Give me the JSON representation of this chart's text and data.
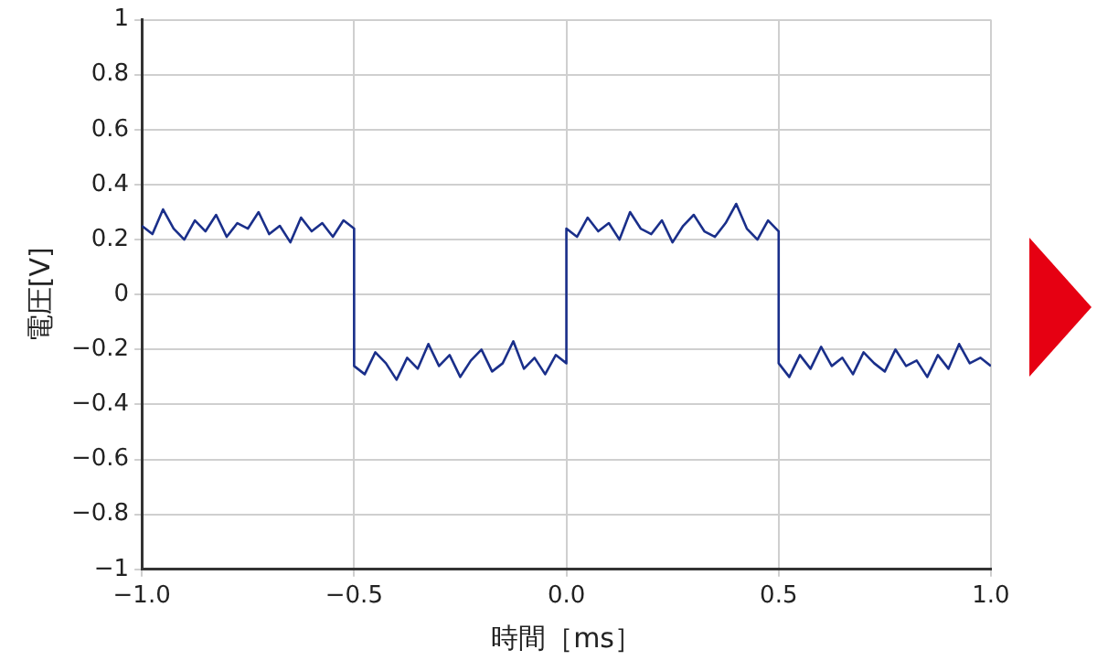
{
  "chart_data": {
    "type": "line",
    "xlabel": "時間［ms］",
    "ylabel": "電圧[V]",
    "x": [
      -1,
      -0.975,
      -0.95,
      -0.925,
      -0.9,
      -0.875,
      -0.85,
      -0.825,
      -0.8,
      -0.775,
      -0.75,
      -0.725,
      -0.7,
      -0.675,
      -0.65,
      -0.625,
      -0.6,
      -0.575,
      -0.55,
      -0.525,
      -0.5,
      -0.5,
      -0.475,
      -0.45,
      -0.425,
      -0.4,
      -0.375,
      -0.35,
      -0.325,
      -0.3,
      -0.275,
      -0.25,
      -0.225,
      -0.2,
      -0.175,
      -0.15,
      -0.125,
      -0.1,
      -0.075,
      -0.05,
      -0.025,
      0,
      0,
      0.025,
      0.05,
      0.075,
      0.1,
      0.125,
      0.15,
      0.175,
      0.2,
      0.225,
      0.25,
      0.275,
      0.3,
      0.325,
      0.35,
      0.375,
      0.4,
      0.425,
      0.45,
      0.475,
      0.5,
      0.5,
      0.525,
      0.55,
      0.575,
      0.6,
      0.625,
      0.65,
      0.675,
      0.7,
      0.725,
      0.75,
      0.775,
      0.8,
      0.825,
      0.85,
      0.875,
      0.9,
      0.925,
      0.95,
      0.975,
      1
    ],
    "series": [
      {
        "color": "#1a2f8a",
        "values": [
          0.25,
          0.22,
          0.31,
          0.24,
          0.2,
          0.27,
          0.23,
          0.29,
          0.21,
          0.26,
          0.24,
          0.3,
          0.22,
          0.25,
          0.19,
          0.28,
          0.23,
          0.26,
          0.21,
          0.27,
          0.24,
          -0.26,
          -0.29,
          -0.21,
          -0.25,
          -0.31,
          -0.23,
          -0.27,
          -0.18,
          -0.26,
          -0.22,
          -0.3,
          -0.24,
          -0.2,
          -0.28,
          -0.25,
          -0.17,
          -0.27,
          -0.23,
          -0.29,
          -0.22,
          -0.25,
          0.24,
          0.21,
          0.28,
          0.23,
          0.26,
          0.2,
          0.3,
          0.24,
          0.22,
          0.27,
          0.19,
          0.25,
          0.29,
          0.23,
          0.21,
          0.26,
          0.33,
          0.24,
          0.2,
          0.27,
          0.23,
          -0.25,
          -0.3,
          -0.22,
          -0.27,
          -0.19,
          -0.26,
          -0.23,
          -0.29,
          -0.21,
          -0.25,
          -0.28,
          -0.2,
          -0.26,
          -0.24,
          -0.3,
          -0.22,
          -0.27,
          -0.18,
          -0.25,
          -0.23,
          -0.26
        ]
      }
    ],
    "xlim": [
      -1,
      1
    ],
    "xticks": [
      {
        "value": -1,
        "label": "−1.0"
      },
      {
        "value": -0.5,
        "label": "−0.5"
      },
      {
        "value": 0,
        "label": "0.0"
      },
      {
        "value": 0.5,
        "label": "0.5"
      },
      {
        "value": 1,
        "label": "1.0"
      }
    ],
    "ylim": [
      -1,
      1
    ],
    "yticks": [
      {
        "value": -1,
        "label": "−1"
      },
      {
        "value": -0.8,
        "label": "−0.8"
      },
      {
        "value": -0.6,
        "label": "−0.6"
      },
      {
        "value": -0.4,
        "label": "−0.4"
      },
      {
        "value": -0.2,
        "label": "−0.2"
      },
      0,
      0.2,
      0.4,
      0.6,
      0.8,
      1
    ],
    "grid": true,
    "legend": false,
    "marker": "none",
    "line_style": "solid"
  }
}
